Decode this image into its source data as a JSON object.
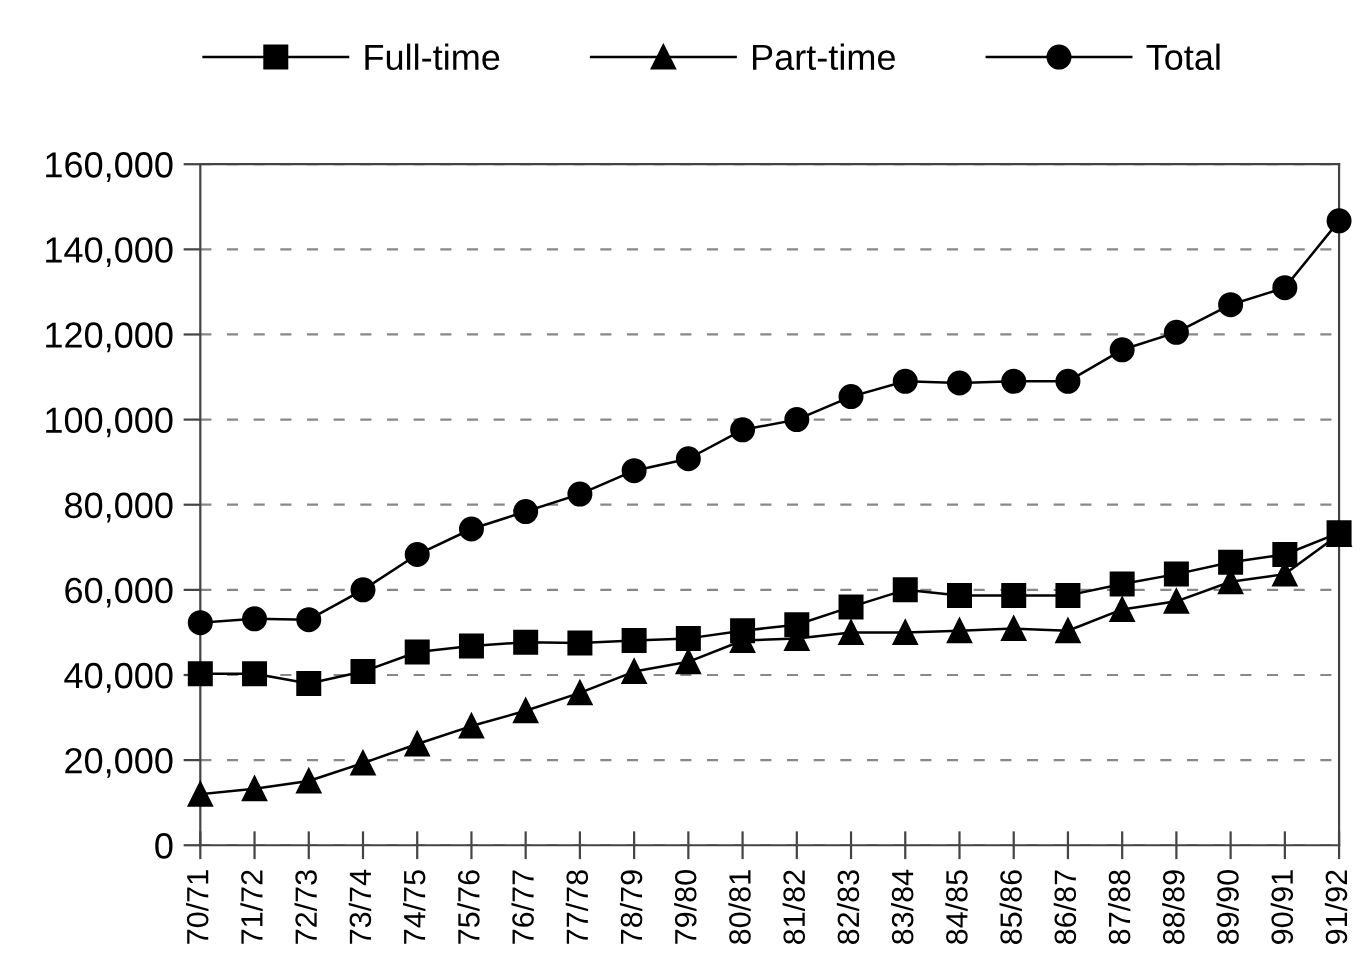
{
  "chart_data": {
    "type": "line",
    "categories": [
      "70/71",
      "71/72",
      "72/73",
      "73/74",
      "74/75",
      "75/76",
      "76/77",
      "77/78",
      "78/79",
      "79/80",
      "80/81",
      "81/82",
      "82/83",
      "83/84",
      "84/85",
      "85/86",
      "86/87",
      "87/88",
      "88/89",
      "89/90",
      "90/91",
      "91/92"
    ],
    "series": [
      {
        "name": "Full-time",
        "color": "#000000",
        "marker": "square",
        "values": [
          40300,
          40300,
          38000,
          40800,
          45400,
          46800,
          47700,
          47500,
          48100,
          48600,
          50400,
          51800,
          56000,
          60000,
          58700,
          58700,
          58700,
          61400,
          63700,
          66500,
          68300,
          73400
        ]
      },
      {
        "name": "Part-time",
        "color": "#000000",
        "marker": "triangle",
        "values": [
          12000,
          13300,
          15100,
          19300,
          23800,
          28000,
          31600,
          35800,
          40800,
          43100,
          48100,
          48600,
          50000,
          50000,
          50400,
          50900,
          50400,
          55400,
          57300,
          61900,
          63700,
          73000
        ]
      },
      {
        "name": "Total",
        "color": "#000000",
        "marker": "circle",
        "values": [
          52300,
          53200,
          53000,
          60000,
          68300,
          74300,
          78400,
          82500,
          88000,
          90800,
          97600,
          100000,
          105400,
          109000,
          108600,
          109000,
          109000,
          116400,
          120500,
          127000,
          131000,
          146700
        ]
      }
    ],
    "ylim": [
      0,
      160000
    ],
    "yticks": [
      {
        "value": 0,
        "label": "0"
      },
      {
        "value": 20000,
        "label": "20,000"
      },
      {
        "value": 40000,
        "label": "40,000"
      },
      {
        "value": 60000,
        "label": "60,000"
      },
      {
        "value": 80000,
        "label": "80,000"
      },
      {
        "value": 100000,
        "label": "100,000"
      },
      {
        "value": 120000,
        "label": "120,000"
      },
      {
        "value": 140000,
        "label": "140,000"
      },
      {
        "value": 160000,
        "label": "160,000"
      }
    ],
    "grid": "y",
    "legend": "top",
    "line_style": "solid"
  }
}
